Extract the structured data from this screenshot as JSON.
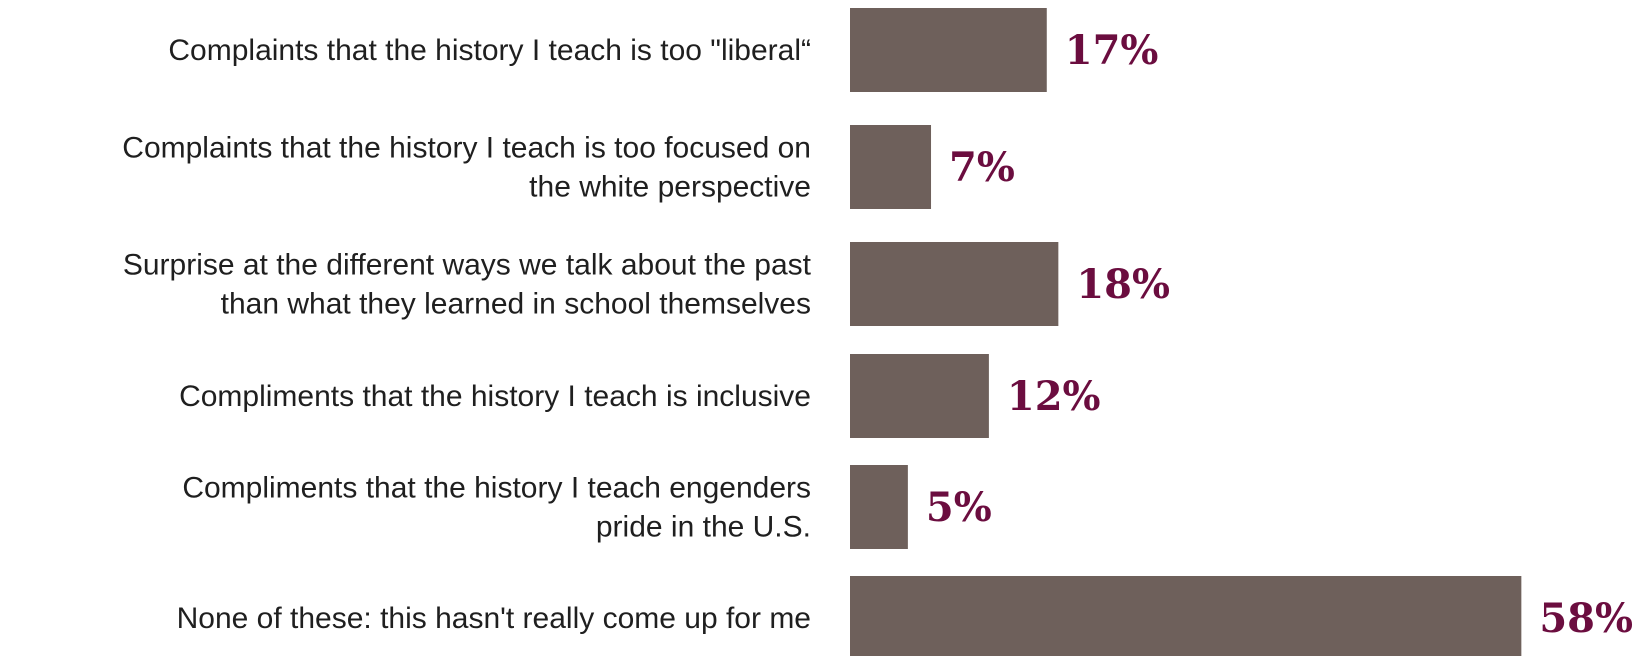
{
  "chart_data": {
    "type": "bar",
    "orientation": "horizontal",
    "categories": [
      [
        "Complaints that the history I teach is too \"liberal“"
      ],
      [
        "Complaints that the history I teach is too focused on",
        "the white perspective"
      ],
      [
        "Surprise at the different ways we talk about the past",
        "than what they learned in school themselves"
      ],
      [
        "Compliments that the history I teach is inclusive"
      ],
      [
        "Compliments that the history I teach engenders",
        "pride in the U.S."
      ],
      [
        "None of these: this hasn't really come up for me"
      ]
    ],
    "values": [
      17,
      7,
      18,
      12,
      5,
      58
    ],
    "value_labels": [
      "17%",
      "7%",
      "18%",
      "12%",
      "5%",
      "58%"
    ],
    "unit": "%",
    "bar_color": "#6e605b",
    "label_color": "#6b0d3f",
    "xlim": [
      0,
      100
    ],
    "grid": false,
    "legend": "none"
  }
}
